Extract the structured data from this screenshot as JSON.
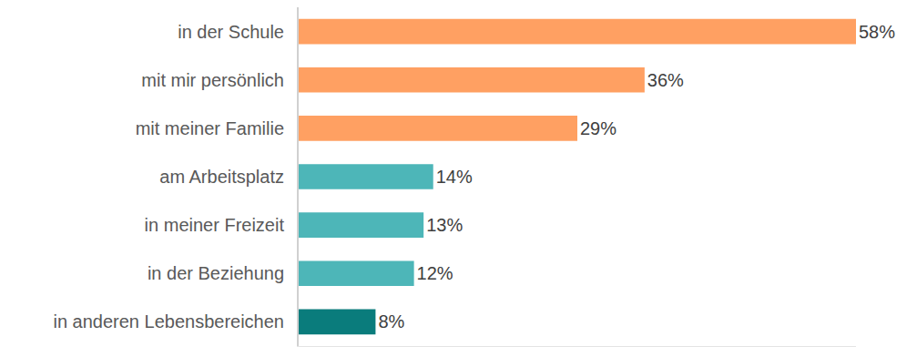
{
  "chart_data": {
    "type": "bar",
    "orientation": "horizontal",
    "categories": [
      "in der Schule",
      "mit mir persönlich",
      "mit meiner Familie",
      "am Arbeitsplatz",
      "in meiner Freizeit",
      "in der Beziehung",
      "in anderen Lebensbereichen"
    ],
    "values": [
      58,
      36,
      29,
      14,
      13,
      12,
      8
    ],
    "value_labels": [
      "58%",
      "36%",
      "29%",
      "14%",
      "13%",
      "12%",
      "8%"
    ],
    "colors": [
      "#FFA062",
      "#FFA062",
      "#FFA062",
      "#4DB6B8",
      "#4DB6B8",
      "#4DB6B8",
      "#0A7C7C"
    ],
    "xlim": [
      0,
      58
    ],
    "data_labels": true,
    "tick_labels": "y",
    "grid": false
  }
}
